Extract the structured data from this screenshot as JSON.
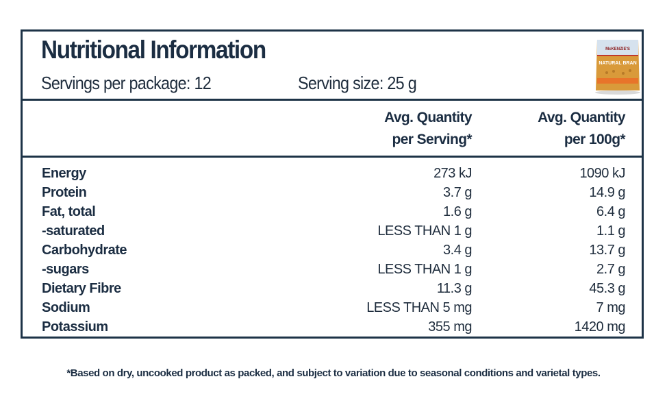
{
  "title": "Nutritional Information",
  "servings_per_package": "Servings per package: 12",
  "serving_size": "Serving size: 25 g",
  "columns": {
    "per_serving": [
      "Avg. Quantity",
      "per Serving*"
    ],
    "per_100g": [
      "Avg. Quantity",
      "per 100g*"
    ]
  },
  "rows": [
    {
      "name": "Energy",
      "per_serving": "273 kJ",
      "per_100g": "1090 kJ"
    },
    {
      "name": "Protein",
      "per_serving": "3.7 g",
      "per_100g": "14.9 g"
    },
    {
      "name": "Fat, total",
      "per_serving": "1.6 g",
      "per_100g": "6.4 g"
    },
    {
      "name": "-saturated",
      "per_serving": "LESS THAN 1 g",
      "per_100g": "1.1 g"
    },
    {
      "name": "Carbohydrate",
      "per_serving": "3.4 g",
      "per_100g": "13.7 g"
    },
    {
      "name": "-sugars",
      "per_serving": "LESS THAN 1 g",
      "per_100g": "2.7 g"
    },
    {
      "name": "Dietary Fibre",
      "per_serving": "11.3 g",
      "per_100g": "45.3 g"
    },
    {
      "name": "Sodium",
      "per_serving": "LESS THAN 5 mg",
      "per_100g": "7 mg"
    },
    {
      "name": "Potassium",
      "per_serving": "355 mg",
      "per_100g": "1420 mg"
    }
  ],
  "footnote": "*Based on dry, uncooked product as packed, and subject to variation due to seasonal conditions and varietal types.",
  "product_image": {
    "brand": "McKENZIE'S",
    "label": "NATURAL BRAN",
    "colors": {
      "bag": "#d99a3a",
      "band": "#e8742a",
      "top": "#d6e2ee"
    }
  }
}
